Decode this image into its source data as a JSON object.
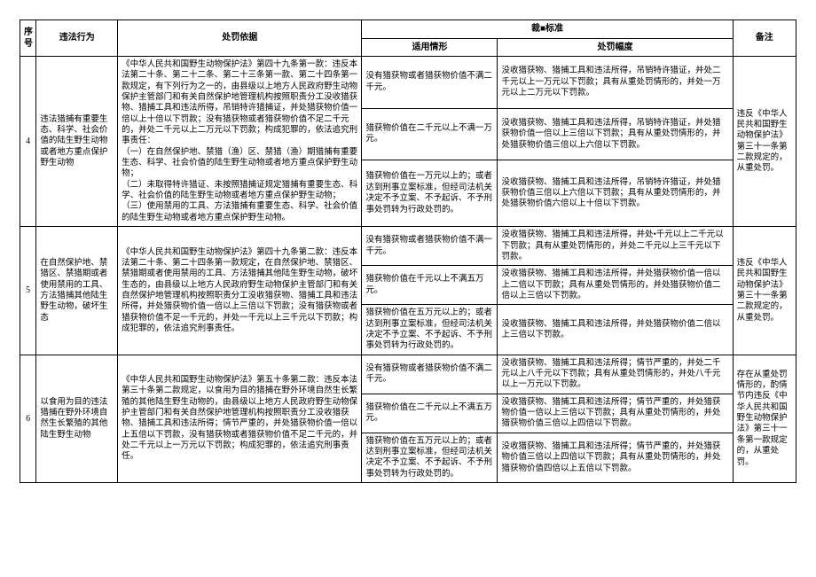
{
  "headers": {
    "seq": "序号",
    "act": "违法行为",
    "basis": "处罚依据",
    "standard_group": "裁■标准",
    "cond": "适用情形",
    "penalty": "处罚幅度",
    "note": "备注"
  },
  "rows": [
    {
      "seq": "4",
      "act": "违法猎捕有重要生态、科学、社会价值的陆生野生动物或者地方重点保护野生动物",
      "basis": "《中华人民共和国野生动物保护法》第四十九条第一款：违反本法第二十条、第二十二条、第二十三条第一款、第二十四条第一款规定，有下列行为之一的，由县级以上地方人民政府野生动物保护主管部门和有关自然保护地管理机构按照职责分工没收猎获物、猎捕工具和违法所得，吊销特许猎捕证，并处猎获物价值一倍以上十倍以下罚款；没有猎获物或者猎获物价值不足二千元的，并处二千元以上二万元以下罚款；构成犯罪的，依法追究刑事责任：\n（一）在自然保护地、禁猎（渔）区、禁猎（渔）期猎捕有重要生态、科学、社会价值的陆生野生动物或者地方重点保护野生动物；\n（二）未取得特许猎证、未按照猎捕证规定猎捕有重要生态、科学、社会价值的陆生野生动物或者地方重点保护野生动物；\n（三）使用禁用的工具、方法猎捕有重要生态、科学、社会价值的陆生野生动物或者地方重点保护野生动物。",
      "sub": [
        {
          "cond": "没有猎获物或者猎获物价值不满二千元。",
          "penalty": "没收猎获物、猎捕工具和违法所得，吊销特许猎证，并处二千元以上一万元以下罚款；具有从重处罚情形的，并处一万元以上二万元以下罚款。"
        },
        {
          "cond": "猎获物价值在二千元以上不满一万元。",
          "penalty": "没收猎获物、猎捕工具和违法所得，吊销特许猎证，并处猎获物价值一倍以上三倍以下罚款；具有从重处罚情形的，并处猎获物价值三倍以上六倍以下罚款。"
        },
        {
          "cond": "猎获物价值在一万元以上的；或者达到刑事立案标准，但经司法机关决定不予立案、不予起诉、不予刑事处罚转为行政处罚的。",
          "penalty": "没收猎获物、猎捕工具和违法所得，吊销特许猎证，并处猎获物价值三倍以上六倍以下罚款；具有从重处罚情形的，并处猎获物价值六倍以上十倍以下罚款。"
        }
      ],
      "note": "违反《中华人民共和国野生动物保护法》第三十一条第二款规定的，从重处罚。"
    },
    {
      "seq": "5",
      "act": "在自然保护地、禁猎区、禁猎期或者使用禁用的工具、方法猎捕其他陆生野生动物，破坏生态",
      "basis": "《中华人民共和国野生动物保护法》第四十九条第二款：违反本法第二十条、第二十四条第一款规定，在自然保护地、禁猎区、禁猎期或者使用禁用的工具、方法猎捕其他陆生野生动物，破坏生态的，由县级以上地方人民政府野生动物保护主管部门和有关自然保护地管理机构按照职责分工没收猎获物、猎捕工具和违法所得，并处猎获物价值一倍以上三倍以下罚款；没有猎获物或者猎获物价值不足一千元的，并处一千元以上三千元以下罚款；构成犯罪的，依法追究刑事责任。",
      "sub": [
        {
          "cond": "没有猎获物或者猎获物价值不满一千元。",
          "penalty": "没收猎获物、猎捕工具和违法所得，并处•千元以上二千元以下罚款；具有从重处罚情形的，并处二千元以上三千元以下罚款。"
        },
        {
          "cond": "猎获物价值在千元以上不满五万元。",
          "penalty": "没收猎获物、猎捕工具和违法所得，并处猎获物价值一倍以上二倍以下罚款；具有从重处罚情形的，并处猎获物价值二倍以上三倍以下罚款。"
        },
        {
          "cond": "猎获物价值在五万元以上的；或者达到刑事立案标准，但经司法机关决定不予立案、不予起诉、不予刑事处罚转为行政处罚的。",
          "penalty": "没收猎获物、猎捕工具和违法所得，并处猎获物价值二倍以上三倍以下罚款。"
        }
      ],
      "note": "违反《中华人民共和国野生动物保护法》第三十一条第二款规定的，从重处罚。"
    },
    {
      "seq": "6",
      "act": "以食用为目的违法猎捕在野外环境自然生长繁殖的其他陆生野生动物",
      "basis": "《中华人民共和国野生动物保护法》第五十条第二款：违反本法第三十条第二款规定，以食用为目的猎捕在野外环境自然生长繁殖的其他陆生野生动物的，由县级以上地方人民政府野生动物保护主管部门和有关自然保护地管理机构按照职责分工没收猎获物、猎捕工具和违法所得；情节严重的，并处猎获物价值一倍以上五倍以下罚款，没有猎获物或者猎获物价值不足二千元的，并处二千元以上一万元以下罚款；构成犯罪的，依法追究刑事责任。",
      "sub": [
        {
          "cond": "没有猎获物或者猎获物价值不满二千元。",
          "penalty": "没收猎获物、猎捕工具和违法所得；情节严重的，并处二千元以上八千元以下罚款；具有从重处罚情形的，并处八千元以上一万元以下罚款。"
        },
        {
          "cond": "猎获物价值在二千元以上不满五万元。",
          "penalty": "没收猎获物、猎捕工具和违法所得；情节严重的，并处猎获物价值一倍以上三倍以下罚款；具有从重处罚情形的，并处猎获物价值三倍以上四倍以下罚款。"
        },
        {
          "cond": "猎获物价值在五万元以上的；或者达到刑事立案标准，但经司法机关决定不予立案、不予起诉、不予刑事处罚转为行政处罚的。",
          "penalty": "没收猎获物、猎捕工具和违法所得；情节严重的，并处猎获物价值三倍以上四倍以下罚款；具有从重处罚情形的，并处猎获物价值四倍以上五倍以下罚款。"
        }
      ],
      "note": "存在从重处罚情形的，酌情节内违反《中华人民共和国野生动物保护法》第三十一条第一款规定的，从重处罚。"
    }
  ]
}
